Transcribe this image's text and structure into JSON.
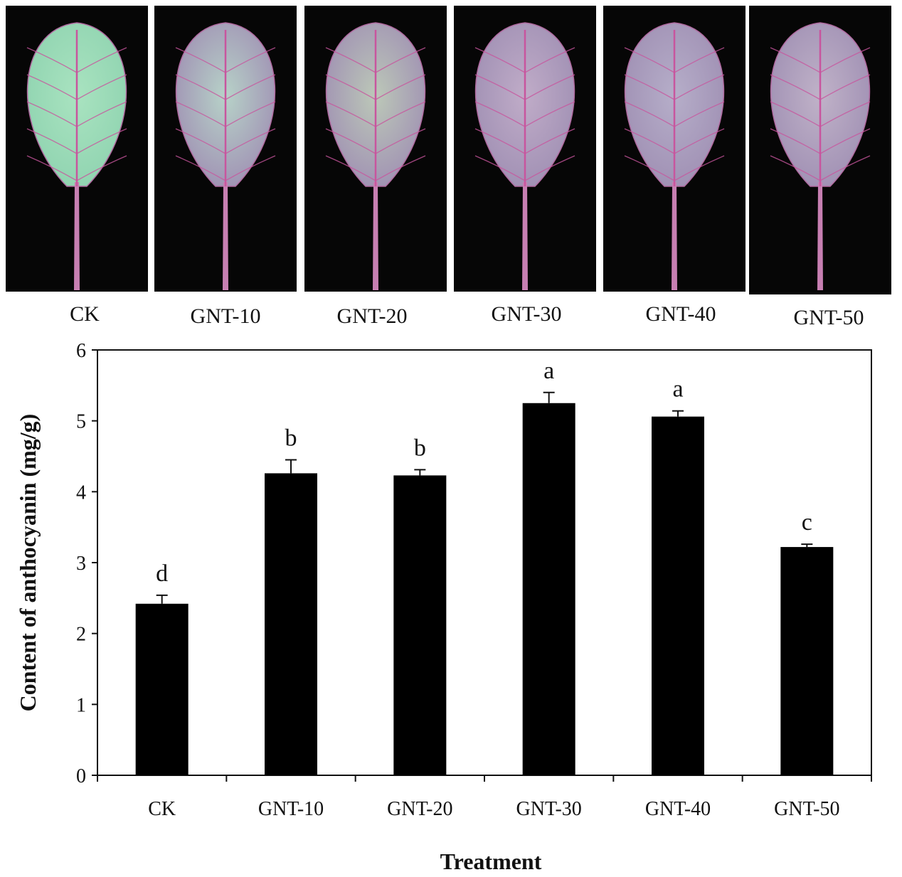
{
  "panels": {
    "labels": [
      "CK",
      "GNT-10",
      "GNT-20",
      "GNT-30",
      "GNT-40",
      "GNT-50"
    ]
  },
  "chart_data": {
    "type": "bar",
    "categories": [
      "CK",
      "GNT-10",
      "GNT-20",
      "GNT-30",
      "GNT-40",
      "GNT-50"
    ],
    "values": [
      2.42,
      4.26,
      4.23,
      5.25,
      5.06,
      3.22
    ],
    "errors": [
      0.12,
      0.19,
      0.08,
      0.15,
      0.08,
      0.04
    ],
    "significance": [
      "d",
      "b",
      "b",
      "a",
      "a",
      "c"
    ],
    "xlabel": "Treatment",
    "ylabel": "Content of anthocyanin (mg/g)",
    "ylim": [
      0,
      6
    ],
    "yticks": [
      0,
      1,
      2,
      3,
      4,
      5,
      6
    ],
    "bar_color": "#000000",
    "grid": false,
    "legend": "none"
  },
  "colors": {
    "panel_background": "#060606",
    "leaf_green": "#a7e3bf",
    "leaf_purple": "#b9a6c4",
    "vein": "#c8559e"
  }
}
